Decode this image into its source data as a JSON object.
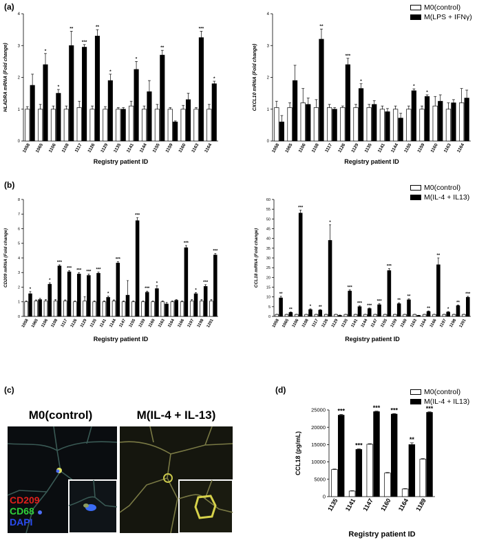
{
  "panels": {
    "a": "(a)",
    "b": "(b)",
    "c": "(c)",
    "d": "(d)"
  },
  "legends": {
    "a": [
      "M0(control)",
      "M(LPS + IFNγ)"
    ],
    "b": [
      "M0(control)",
      "M(IL-4 + IL13)"
    ],
    "d": [
      "M0(control)",
      "M(IL-4 + IL13)"
    ]
  },
  "micrograph": {
    "left_title": "M0(control)",
    "right_title": "M(IL-4 + IL-13)",
    "markers": [
      "CD209",
      "CD68",
      "DAPI"
    ],
    "marker_colors": [
      "#e0201b",
      "#2fd13a",
      "#2b4cf0"
    ]
  },
  "chart_data": [
    {
      "id": "a1",
      "type": "bar",
      "title": "",
      "xlabel": "Registry patient ID",
      "ylabel": "HLADRA mRNA (Fold change)",
      "ylim": [
        0,
        4
      ],
      "yticks": [
        0,
        1,
        2,
        3,
        4
      ],
      "categories": [
        "1058",
        "1065",
        "1106",
        "1108",
        "1117",
        "1126",
        "1129",
        "1135",
        "1141",
        "1144",
        "1155",
        "1159",
        "1160",
        "1163",
        "1164"
      ],
      "series": [
        {
          "name": "M0(control)",
          "values": [
            1,
            1,
            1,
            1,
            1.05,
            1,
            1,
            1,
            1.1,
            1,
            1,
            1,
            1,
            1,
            1
          ],
          "errors": [
            0.08,
            0.15,
            0.1,
            0.1,
            0.2,
            0.1,
            0.08,
            0.05,
            0.15,
            0.1,
            0.15,
            0.05,
            0.12,
            0.05,
            0.15
          ]
        },
        {
          "name": "M(LPS + IFNγ)",
          "values": [
            1.75,
            2.4,
            1.5,
            3.0,
            2.95,
            3.3,
            1.9,
            1.0,
            2.25,
            1.55,
            2.7,
            0.6,
            1.3,
            3.25,
            1.8
          ],
          "errors": [
            0.35,
            0.35,
            0.12,
            0.45,
            0.08,
            0.2,
            0.2,
            0.05,
            0.25,
            0.35,
            0.15,
            0.03,
            0.2,
            0.2,
            0.08
          ]
        }
      ],
      "sig": [
        "",
        "*",
        "*",
        "**",
        "***",
        "**",
        "*",
        "",
        "*",
        "",
        "**",
        "",
        "",
        "***",
        "*"
      ]
    },
    {
      "id": "a2",
      "type": "bar",
      "title": "",
      "xlabel": "Registry patient ID",
      "ylabel": "CXCL10 mRNA (Fold change)",
      "ylim": [
        0,
        4
      ],
      "yticks": [
        0,
        1,
        2,
        3,
        4
      ],
      "categories": [
        "1058",
        "1065",
        "1106",
        "1108",
        "1117",
        "1126",
        "1129",
        "1135",
        "1141",
        "1144",
        "1155",
        "1159",
        "1160",
        "1163",
        "1164"
      ],
      "series": [
        {
          "name": "M0(control)",
          "values": [
            1.05,
            1.05,
            1.2,
            1.05,
            1.05,
            1.05,
            1.05,
            1.05,
            1.0,
            1.0,
            1.0,
            1.0,
            1.1,
            1.0,
            1.2
          ],
          "errors": [
            0.2,
            0.15,
            0.45,
            0.25,
            0.1,
            0.05,
            0.1,
            0.1,
            0.1,
            0.1,
            0.1,
            0.1,
            0.3,
            0.2,
            0.45
          ]
        },
        {
          "name": "M(LPS + IFNγ)",
          "values": [
            0.6,
            1.9,
            1.15,
            3.2,
            1.0,
            2.4,
            1.65,
            1.15,
            0.92,
            0.72,
            1.58,
            1.4,
            1.25,
            1.2,
            1.35
          ],
          "errors": [
            0.2,
            0.48,
            0.2,
            0.32,
            0.05,
            0.2,
            0.15,
            0.12,
            0.1,
            0.15,
            0.06,
            0.05,
            0.2,
            0.1,
            0.25
          ]
        }
      ],
      "sig": [
        "",
        "",
        "",
        "**",
        "",
        "***",
        "*",
        "",
        "",
        "",
        "*",
        "*",
        "",
        "",
        ""
      ]
    },
    {
      "id": "b1",
      "type": "bar",
      "title": "",
      "xlabel": "Registry patient ID",
      "ylabel": "CD209 mRNA (Fold change)",
      "ylim": [
        0,
        8
      ],
      "yticks": [
        0,
        1,
        2,
        3,
        4,
        5,
        6,
        7,
        8
      ],
      "categories": [
        "1058",
        "1065",
        "1106",
        "1108",
        "1117",
        "1126",
        "1129",
        "1135",
        "1141",
        "1144",
        "1147",
        "1155",
        "1159",
        "1160",
        "1163",
        "1164",
        "1166",
        "1197",
        "1198",
        "1201"
      ],
      "series": [
        {
          "name": "M0(control)",
          "values": [
            1,
            1.05,
            1.05,
            1.05,
            1.05,
            1,
            1.05,
            1,
            1,
            1.05,
            1,
            1,
            1,
            1,
            1,
            1,
            1,
            1.05,
            1.05,
            1.05
          ],
          "errors": [
            0.05,
            0.08,
            0.1,
            0.1,
            0.08,
            0.05,
            0.3,
            0.05,
            0.05,
            0.08,
            0.05,
            0.05,
            0.05,
            0.05,
            0.05,
            0.05,
            0.05,
            0.1,
            0.1,
            0.1
          ]
        },
        {
          "name": "M(IL-4 + IL13)",
          "values": [
            1.55,
            1.15,
            2.2,
            3.45,
            3.05,
            2.9,
            2.8,
            2.95,
            1.3,
            3.65,
            1.45,
            6.55,
            1.65,
            1.9,
            0.85,
            1.1,
            4.7,
            1.55,
            2.05,
            4.2
          ],
          "errors": [
            0.15,
            0.08,
            0.1,
            0.08,
            0.08,
            0.1,
            0.1,
            0.08,
            0.08,
            0.1,
            1.0,
            0.2,
            0.08,
            0.2,
            0.1,
            0.05,
            0.15,
            0.08,
            0.12,
            0.1
          ]
        }
      ],
      "sig": [
        "*",
        "",
        "*",
        "***",
        "***",
        "***",
        "***",
        "***",
        "*",
        "***",
        "",
        "***",
        "***",
        "*",
        "",
        "",
        "***",
        "*",
        "***",
        "***"
      ]
    },
    {
      "id": "b2",
      "type": "bar",
      "title": "",
      "xlabel": "Registry patient ID",
      "ylabel": "CCL18 mRNA (Fold change)",
      "ylim": [
        0,
        60
      ],
      "yticks": [
        0,
        5,
        10,
        15,
        20,
        25,
        30,
        35,
        40,
        45,
        50,
        55,
        60
      ],
      "categories": [
        "1058",
        "1065",
        "1106",
        "1108",
        "1117",
        "1126",
        "1129",
        "1135",
        "1141",
        "1144",
        "1147",
        "1155",
        "1159",
        "1160",
        "1163",
        "1164",
        "1166",
        "1197",
        "1198",
        "1201"
      ],
      "series": [
        {
          "name": "M0(control)",
          "values": [
            1,
            1,
            1,
            1,
            1,
            1,
            1,
            1,
            1,
            1,
            1,
            1,
            1,
            1,
            1,
            1,
            1,
            1,
            1,
            1
          ],
          "errors": [
            0.1,
            0.1,
            0.1,
            0.1,
            0.1,
            0.1,
            0.1,
            0.1,
            0.1,
            0.1,
            0.1,
            0.1,
            0.1,
            0.1,
            0.1,
            0.1,
            0.1,
            0.1,
            0.1,
            0.1
          ]
        },
        {
          "name": "M(IL-4 + IL13)",
          "values": [
            9.5,
            2,
            53,
            3.5,
            3.2,
            39,
            0.5,
            13,
            5,
            4,
            6,
            23.5,
            6.5,
            8.5,
            0.5,
            2.5,
            26.5,
            2.2,
            5.5,
            9.8
          ],
          "errors": [
            0.8,
            0.3,
            1.5,
            0.4,
            0.3,
            8,
            0.2,
            0.6,
            0.4,
            0.3,
            0.5,
            1,
            0.5,
            0.5,
            0.1,
            0.3,
            3.5,
            0.3,
            0.4,
            0.5
          ]
        }
      ],
      "sig": [
        "**",
        "**",
        "***",
        "*",
        "**",
        "*",
        "",
        "***",
        "***",
        "***",
        "***",
        "***",
        "**",
        "**",
        "",
        "**",
        "**",
        "*",
        "**",
        "***"
      ]
    },
    {
      "id": "d",
      "type": "bar",
      "title": "",
      "xlabel": "Registry patient ID",
      "ylabel": "CCL18 (pg/mL)",
      "ylim": [
        0,
        25000
      ],
      "yticks": [
        0,
        5000,
        10000,
        15000,
        20000,
        25000
      ],
      "categories": [
        "1135",
        "1141",
        "1147",
        "1160",
        "1164",
        "1189"
      ],
      "series": [
        {
          "name": "M0(control)",
          "values": [
            7800,
            1600,
            15100,
            6800,
            2200,
            10800
          ],
          "errors": [
            150,
            100,
            150,
            150,
            100,
            150
          ]
        },
        {
          "name": "M(IL-4 + IL13)",
          "values": [
            23500,
            13600,
            24500,
            23800,
            15000,
            24300
          ],
          "errors": [
            200,
            150,
            150,
            150,
            500,
            150
          ]
        }
      ],
      "sig": [
        "***",
        "***",
        "***",
        "***",
        "**",
        "***"
      ]
    }
  ]
}
